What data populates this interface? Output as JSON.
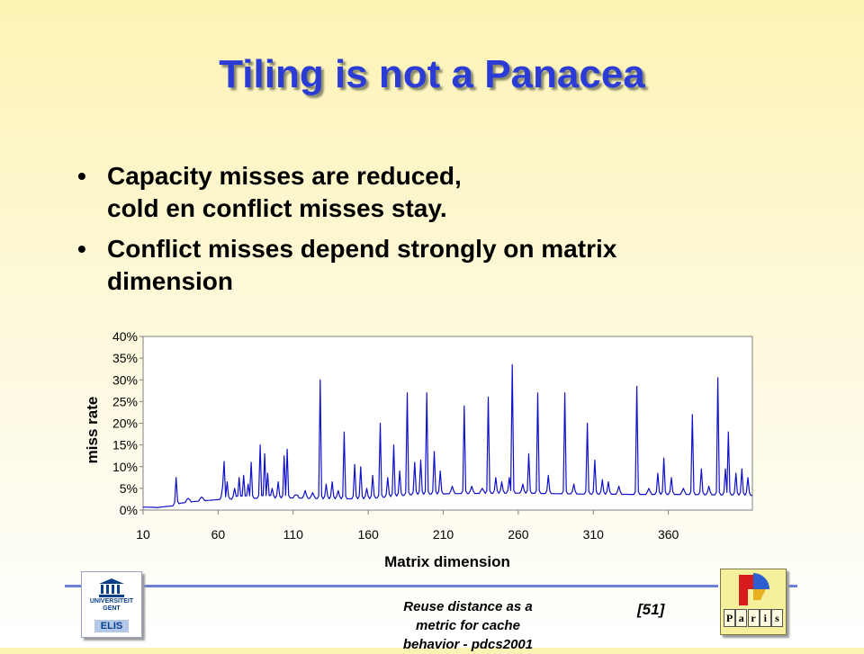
{
  "slide": {
    "title": "Tiling is not a Panacea",
    "bullets": [
      {
        "marker": "•",
        "lines": [
          "Capacity misses are reduced,",
          "cold en conflict misses stay."
        ]
      },
      {
        "marker": "•",
        "lines": [
          "Conflict misses depend strongly on matrix",
          "dimension"
        ]
      }
    ]
  },
  "footer": {
    "text_lines": [
      "Reuse distance as a",
      "metric for cache",
      "behavior - pdcs2001"
    ],
    "slide_number": "[51]",
    "logo_left": {
      "lines": [
        "UNIVERSITEIT",
        "GENT"
      ],
      "badge": "ELIS"
    },
    "logo_right": {
      "letters": [
        "P",
        "a",
        "r",
        "i",
        "s"
      ]
    }
  },
  "chart_data": {
    "type": "line",
    "xlabel": "Matrix dimension",
    "ylabel": "miss rate",
    "xlim": [
      10,
      416
    ],
    "ylim": [
      0,
      40
    ],
    "y_unit": "%",
    "xticks": [
      10,
      60,
      110,
      160,
      210,
      260,
      310,
      360
    ],
    "yticks": [
      "0%",
      "5%",
      "10%",
      "15%",
      "20%",
      "25%",
      "30%",
      "35%",
      "40%"
    ],
    "line_color": "#1010c8",
    "grid": false,
    "legend": "none",
    "baseline_points": [
      [
        10,
        0.7
      ],
      [
        20,
        0.6
      ],
      [
        30,
        1.0
      ],
      [
        35,
        1.6
      ],
      [
        45,
        2.0
      ],
      [
        60,
        2.4
      ],
      [
        80,
        2.7
      ],
      [
        110,
        2.8
      ],
      [
        130,
        2.6
      ],
      [
        160,
        2.6
      ],
      [
        190,
        3.6
      ],
      [
        220,
        3.8
      ],
      [
        260,
        3.9
      ],
      [
        300,
        3.7
      ],
      [
        340,
        3.6
      ],
      [
        370,
        3.6
      ],
      [
        416,
        3.4
      ]
    ],
    "peaks": [
      {
        "x": 32,
        "y": 7.5
      },
      {
        "x": 40,
        "y": 2.7
      },
      {
        "x": 49,
        "y": 3.0
      },
      {
        "x": 63,
        "y": 5.5
      },
      {
        "x": 64,
        "y": 11.2
      },
      {
        "x": 66,
        "y": 6.5
      },
      {
        "x": 71,
        "y": 5.0
      },
      {
        "x": 74,
        "y": 7.5
      },
      {
        "x": 77,
        "y": 8.0
      },
      {
        "x": 80,
        "y": 6.0
      },
      {
        "x": 82,
        "y": 11.0
      },
      {
        "x": 88,
        "y": 15.0
      },
      {
        "x": 91,
        "y": 13.0
      },
      {
        "x": 93,
        "y": 8.5
      },
      {
        "x": 96,
        "y": 5.0
      },
      {
        "x": 100,
        "y": 6.5
      },
      {
        "x": 104,
        "y": 12.5
      },
      {
        "x": 106,
        "y": 14.0
      },
      {
        "x": 112,
        "y": 3.5
      },
      {
        "x": 118,
        "y": 4.5
      },
      {
        "x": 123,
        "y": 4.0
      },
      {
        "x": 128,
        "y": 30.0
      },
      {
        "x": 132,
        "y": 6.0
      },
      {
        "x": 136,
        "y": 6.5
      },
      {
        "x": 140,
        "y": 4.5
      },
      {
        "x": 144,
        "y": 18.0
      },
      {
        "x": 151,
        "y": 10.5
      },
      {
        "x": 155,
        "y": 10.0
      },
      {
        "x": 159,
        "y": 5.0
      },
      {
        "x": 163,
        "y": 8.0
      },
      {
        "x": 168,
        "y": 20.0
      },
      {
        "x": 173,
        "y": 7.5
      },
      {
        "x": 177,
        "y": 15.0
      },
      {
        "x": 181,
        "y": 9.0
      },
      {
        "x": 186,
        "y": 27.0
      },
      {
        "x": 191,
        "y": 11.0
      },
      {
        "x": 195,
        "y": 11.5
      },
      {
        "x": 199,
        "y": 27.0
      },
      {
        "x": 204,
        "y": 13.5
      },
      {
        "x": 208,
        "y": 9.0
      },
      {
        "x": 216,
        "y": 5.5
      },
      {
        "x": 224,
        "y": 24.0
      },
      {
        "x": 229,
        "y": 5.5
      },
      {
        "x": 236,
        "y": 5.0
      },
      {
        "x": 240,
        "y": 26.0
      },
      {
        "x": 245,
        "y": 7.5
      },
      {
        "x": 249,
        "y": 6.5
      },
      {
        "x": 254,
        "y": 7.5
      },
      {
        "x": 256,
        "y": 33.5
      },
      {
        "x": 263,
        "y": 6.0
      },
      {
        "x": 267,
        "y": 13.0
      },
      {
        "x": 273,
        "y": 27.0
      },
      {
        "x": 280,
        "y": 8.0
      },
      {
        "x": 291,
        "y": 27.0
      },
      {
        "x": 297,
        "y": 6.0
      },
      {
        "x": 306,
        "y": 20.0
      },
      {
        "x": 311,
        "y": 11.5
      },
      {
        "x": 316,
        "y": 7.0
      },
      {
        "x": 320,
        "y": 6.5
      },
      {
        "x": 327,
        "y": 5.5
      },
      {
        "x": 339,
        "y": 28.5
      },
      {
        "x": 347,
        "y": 5.0
      },
      {
        "x": 353,
        "y": 8.5
      },
      {
        "x": 357,
        "y": 12.0
      },
      {
        "x": 362,
        "y": 7.5
      },
      {
        "x": 370,
        "y": 5.0
      },
      {
        "x": 376,
        "y": 22.0
      },
      {
        "x": 382,
        "y": 9.5
      },
      {
        "x": 387,
        "y": 5.5
      },
      {
        "x": 393,
        "y": 30.5
      },
      {
        "x": 398,
        "y": 9.5
      },
      {
        "x": 400,
        "y": 18.0
      },
      {
        "x": 405,
        "y": 8.5
      },
      {
        "x": 409,
        "y": 9.5
      },
      {
        "x": 413,
        "y": 7.5
      }
    ]
  }
}
